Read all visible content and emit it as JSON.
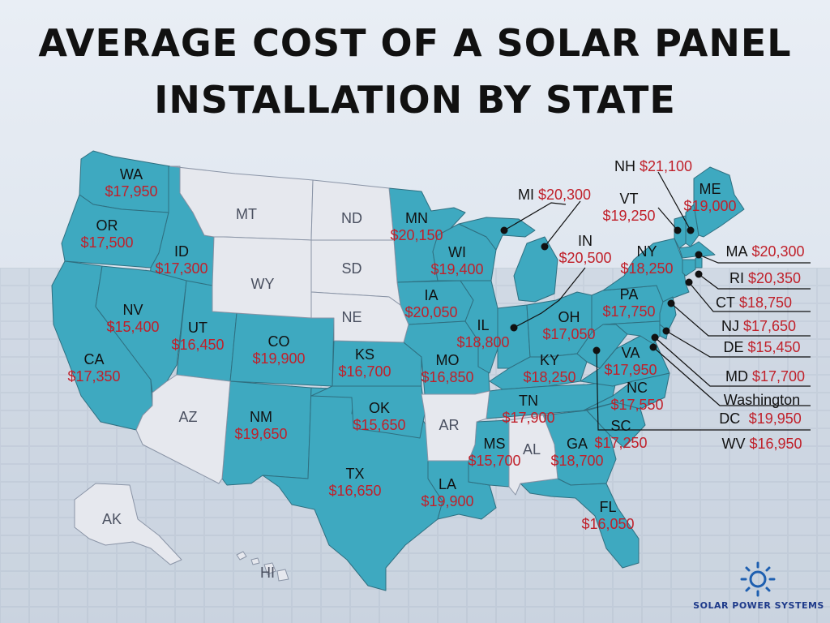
{
  "title_line1": "AVERAGE COST OF A SOLAR PANEL",
  "title_line2": "INSTALLATION BY STATE",
  "logo_text": "SOLAR POWER SYSTEMS",
  "colors": {
    "data_state": "#3ea9c0",
    "nodata_state": "#e6e8ee",
    "price": "#c0202a",
    "title": "#111111"
  },
  "states": {
    "WA": "$17,950",
    "OR": "$17,500",
    "ID": "$17,300",
    "CA": "$17,350",
    "NV": "$15,400",
    "UT": "$16,450",
    "CO": "$19,900",
    "NM": "$19,650",
    "TX": "$16,650",
    "KS": "$16,700",
    "OK": "$15,650",
    "MN": "$20,150",
    "IA": "$20,050",
    "MO": "$16,850",
    "LA": "$19,900",
    "WI": "$19,400",
    "IL": "$18,800",
    "MS": "$15,700",
    "MI": "$20,300",
    "IN": "$20,500",
    "OH": "$17,050",
    "KY": "$18,250",
    "TN": "$17,900",
    "GA": "$18,700",
    "FL": "$16,050",
    "SC": "$17,250",
    "NC": "$17,550",
    "VA": "$17,950",
    "PA": "$17,750",
    "NY": "$18,250",
    "VT": "$19,250",
    "NH": "$21,100",
    "ME": "$19,000",
    "MA": "$20,300",
    "RI": "$20,350",
    "CT": "$18,750",
    "NJ": "$17,650",
    "DE": "$15,450",
    "MD": "$17,700",
    "DC": "$19,950",
    "WV": "$16,950"
  },
  "no_data_states": [
    "MT",
    "ND",
    "SD",
    "WY",
    "NE",
    "AZ",
    "AR",
    "AL",
    "AK",
    "HI"
  ],
  "dc_label_line1": "Washington",
  "dc_label_line2": "DC"
}
